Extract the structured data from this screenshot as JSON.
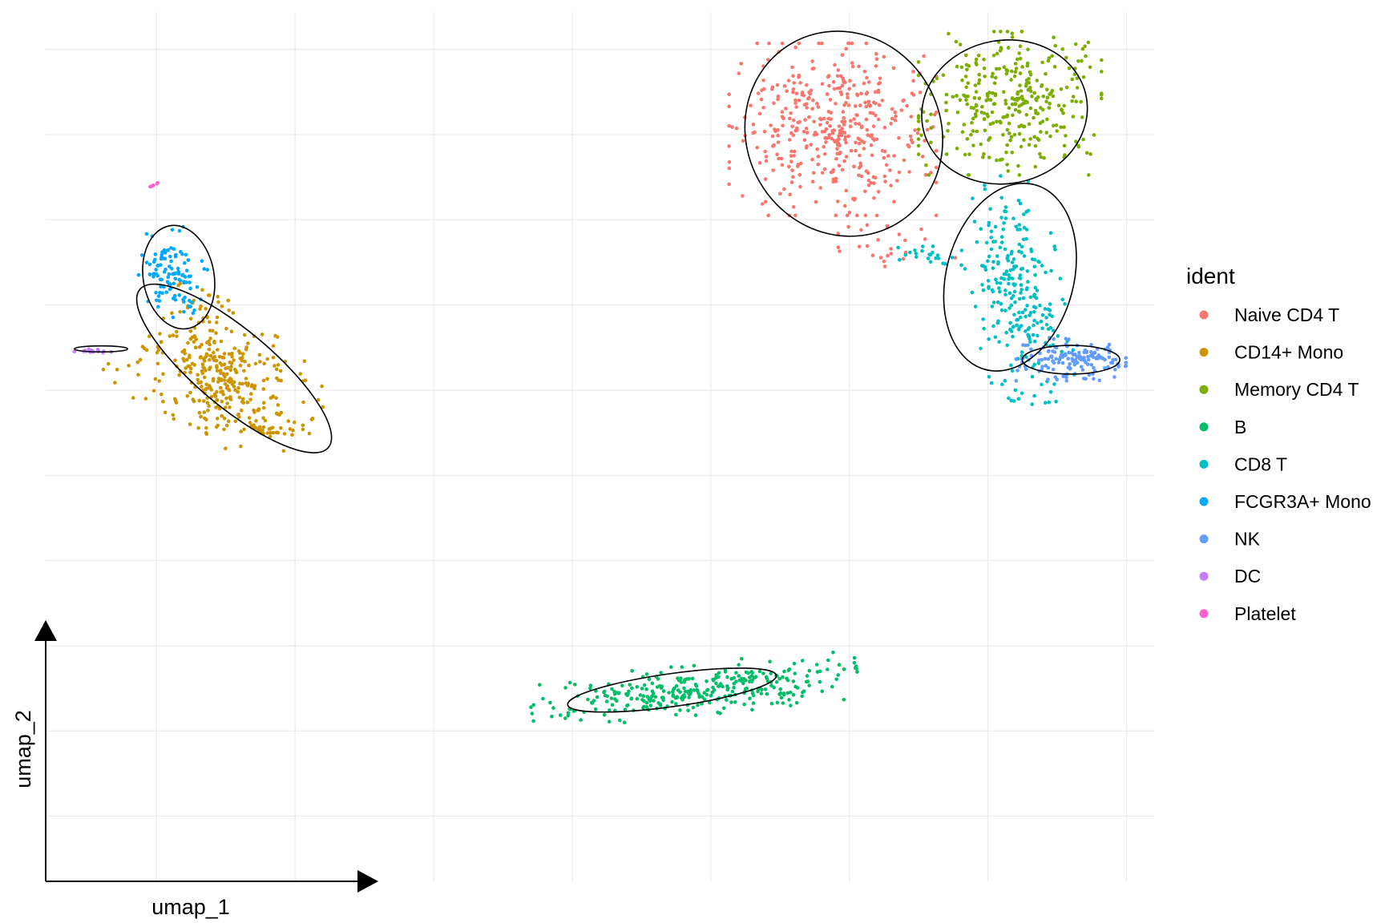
{
  "chart_data": {
    "type": "scatter",
    "title": "",
    "xlabel": "umap_1",
    "ylabel": "umap_2",
    "xlim": [
      -10,
      10
    ],
    "ylim": [
      -10,
      10
    ],
    "grid": true,
    "legend": {
      "title": "ident",
      "placement": "right"
    },
    "series": [
      {
        "name": "Naive CD4 T",
        "color": "#F8766D",
        "clusters": [
          {
            "center": [
              4.2,
              7.3
            ],
            "spread": [
              0.85,
              0.9
            ],
            "angle": 0,
            "n": 420
          },
          {
            "center": [
              5.4,
              4.6
            ],
            "spread": [
              0.5,
              0.25
            ],
            "angle": 0,
            "n": 25
          }
        ]
      },
      {
        "name": "CD14+ Mono",
        "color": "#CD9600",
        "clusters": [
          {
            "center": [
              -6.8,
              1.6
            ],
            "spread": [
              0.85,
              0.6
            ],
            "angle": -35,
            "n": 330
          },
          {
            "center": [
              -7.1,
              2.9
            ],
            "spread": [
              0.22,
              0.45
            ],
            "angle": 0,
            "n": 30
          },
          {
            "center": [
              -6.0,
              0.45
            ],
            "spread": [
              0.35,
              0.15
            ],
            "angle": -15,
            "n": 30
          }
        ]
      },
      {
        "name": "Memory CD4 T",
        "color": "#7CAE00",
        "clusters": [
          {
            "center": [
              7.4,
              7.9
            ],
            "spread": [
              0.75,
              0.75
            ],
            "angle": 0,
            "n": 330
          }
        ]
      },
      {
        "name": "B",
        "color": "#00BE67",
        "clusters": [
          {
            "center": [
              1.7,
              -5.6
            ],
            "spread": [
              1.35,
              0.27
            ],
            "angle": 8,
            "n": 330
          }
        ]
      },
      {
        "name": "CD8 T",
        "color": "#00BFC4",
        "clusters": [
          {
            "center": [
              7.5,
              3.6
            ],
            "spread": [
              0.38,
              1.2
            ],
            "angle": 8,
            "n": 260
          },
          {
            "center": [
              5.9,
              4.4
            ],
            "spread": [
              0.3,
              0.12
            ],
            "angle": -20,
            "n": 22
          }
        ]
      },
      {
        "name": "FCGR3A+ Mono",
        "color": "#00A9FF",
        "clusters": [
          {
            "center": [
              -7.7,
              4.0
            ],
            "spread": [
              0.28,
              0.45
            ],
            "angle": 15,
            "n": 110
          }
        ]
      },
      {
        "name": "NK",
        "color": "#619CFF",
        "clusters": [
          {
            "center": [
              8.5,
              2.0
            ],
            "spread": [
              0.45,
              0.22
            ],
            "angle": 0,
            "n": 150
          }
        ]
      },
      {
        "name": "DC",
        "color": "#C77CFF",
        "clusters": [
          {
            "center": [
              -9.15,
              2.2
            ],
            "spread": [
              0.2,
              0.03
            ],
            "angle": 0,
            "n": 16
          }
        ]
      },
      {
        "name": "Platelet",
        "color": "#FF61CC",
        "clusters": [
          {
            "center": [
              -8.05,
              6.0
            ],
            "spread": [
              0.04,
              0.02
            ],
            "angle": 20,
            "n": 5
          }
        ]
      }
    ],
    "ellipses": [
      {
        "label": "Naive CD4 T",
        "center": [
          4.4,
          7.2
        ],
        "radii": [
          1.75,
          2.4
        ],
        "angle": 30
      },
      {
        "label": "Memory CD4 T",
        "center": [
          7.3,
          7.7
        ],
        "radii": [
          1.5,
          1.65
        ],
        "angle": 10
      },
      {
        "label": "CD8 T",
        "center": [
          7.4,
          3.9
        ],
        "radii": [
          1.15,
          2.2
        ],
        "angle": -15
      },
      {
        "label": "NK",
        "center": [
          8.5,
          2.0
        ],
        "radii": [
          0.88,
          0.33
        ],
        "angle": 0
      },
      {
        "label": "FCGR3A+ Mono",
        "center": [
          -7.6,
          3.9
        ],
        "radii": [
          0.64,
          1.2
        ],
        "angle": 10
      },
      {
        "label": "CD14+ Mono",
        "center": [
          -6.6,
          1.8
        ],
        "radii": [
          2.22,
          0.88
        ],
        "angle": -40
      },
      {
        "label": "DC",
        "center": [
          -9.0,
          2.25
        ],
        "radii": [
          0.48,
          0.07
        ],
        "angle": 0
      },
      {
        "label": "B",
        "center": [
          1.3,
          -5.6
        ],
        "radii": [
          1.9,
          0.38
        ],
        "angle": 8
      }
    ]
  }
}
